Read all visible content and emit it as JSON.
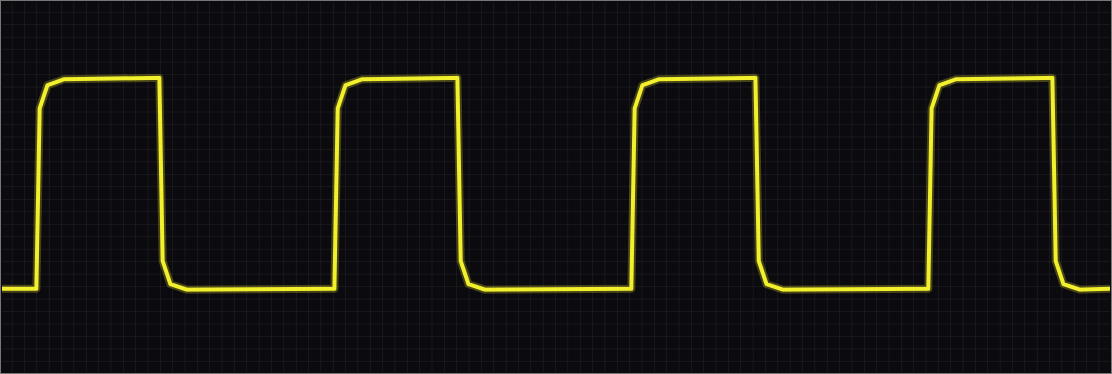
{
  "chart_data": {
    "type": "line",
    "grid": true,
    "xlim": [
      0,
      10
    ],
    "ylim": [
      -4,
      4
    ],
    "x": [
      0,
      0.31,
      0.34,
      0.41,
      0.56,
      1.42,
      1.45,
      1.52,
      1.67,
      3.0,
      3.03,
      3.1,
      3.25,
      4.11,
      4.14,
      4.21,
      4.36,
      5.68,
      5.71,
      5.78,
      5.93,
      6.8,
      6.83,
      6.9,
      7.05,
      8.36,
      8.39,
      8.46,
      8.61,
      9.48,
      9.51,
      9.58,
      9.73,
      10
    ],
    "series": [
      {
        "color": "#f2ef2c",
        "values": [
          -2.2,
          -2.2,
          1.7,
          2.2,
          2.33,
          2.36,
          -1.6,
          -2.1,
          -2.22,
          -2.2,
          1.7,
          2.2,
          2.33,
          2.36,
          -1.6,
          -2.1,
          -2.22,
          -2.2,
          1.7,
          2.2,
          2.33,
          2.36,
          -1.6,
          -2.1,
          -2.22,
          -2.2,
          1.7,
          2.2,
          2.33,
          2.36,
          -1.6,
          -2.1,
          -2.22,
          -2.2
        ]
      }
    ]
  }
}
